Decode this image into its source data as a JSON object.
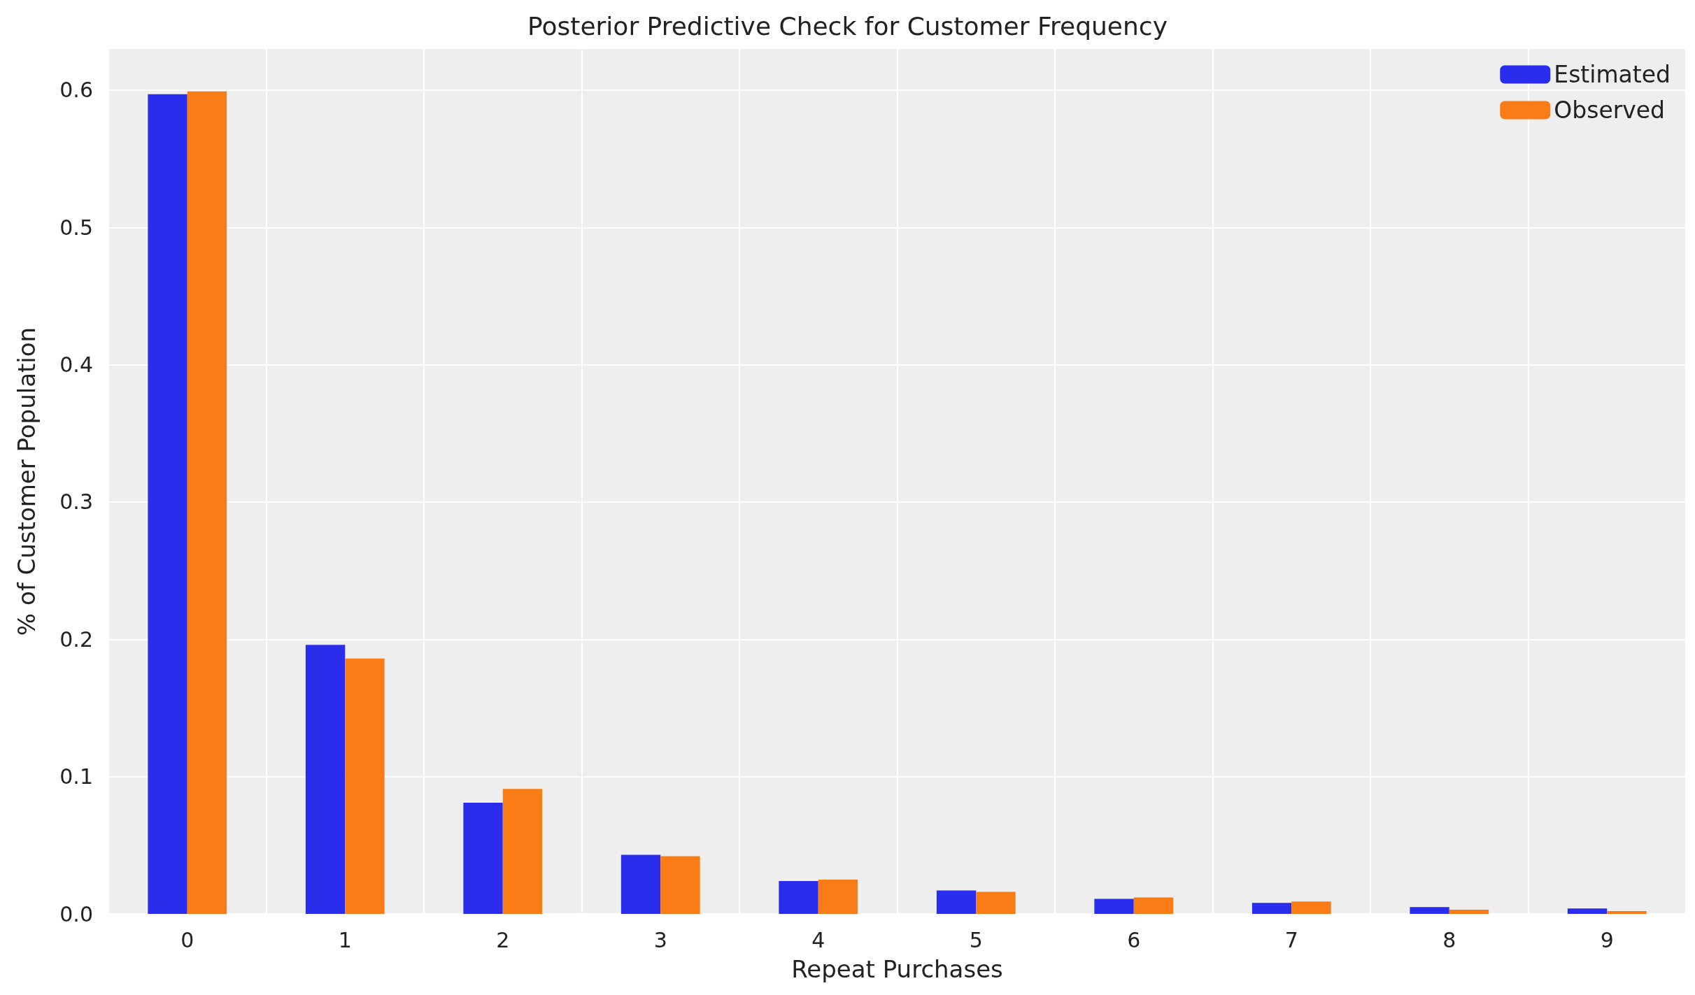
{
  "chart_data": {
    "type": "bar",
    "title": "Posterior Predictive Check for Customer Frequency",
    "xlabel": "Repeat Purchases",
    "ylabel": "% of Customer Population",
    "categories": [
      "0",
      "1",
      "2",
      "3",
      "4",
      "5",
      "6",
      "7",
      "8",
      "9"
    ],
    "series": [
      {
        "name": "Estimated",
        "color": "#2a2eec",
        "values": [
          0.597,
          0.196,
          0.081,
          0.043,
          0.024,
          0.017,
          0.011,
          0.008,
          0.005,
          0.004
        ]
      },
      {
        "name": "Observed",
        "color": "#fa7c17",
        "values": [
          0.599,
          0.186,
          0.091,
          0.042,
          0.025,
          0.016,
          0.012,
          0.009,
          0.003,
          0.002
        ]
      }
    ],
    "ylim": [
      0,
      0.63
    ],
    "yticks": [
      {
        "value": 0,
        "label": "0.0"
      },
      {
        "value": 0.1,
        "label": "0.1"
      },
      {
        "value": 0.2,
        "label": "0.2"
      },
      {
        "value": 0.3,
        "label": "0.3"
      },
      {
        "value": 0.4,
        "label": "0.4"
      },
      {
        "value": 0.5,
        "label": "0.5"
      },
      {
        "value": 0.6,
        "label": "0.6"
      }
    ],
    "grid": true,
    "legend": "top right"
  }
}
